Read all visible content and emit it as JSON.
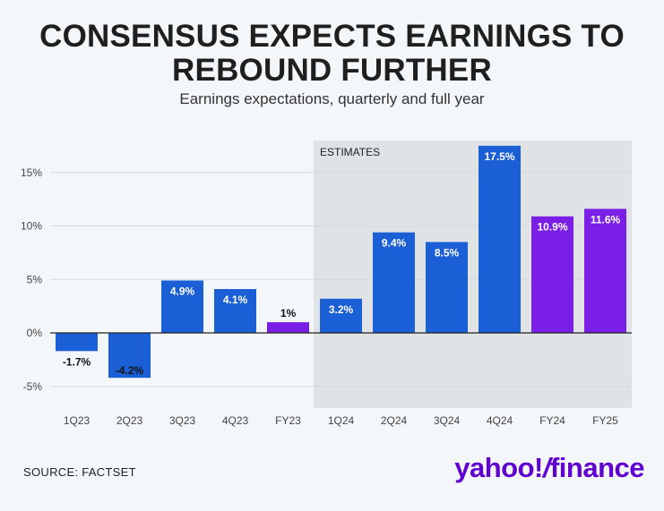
{
  "header": {
    "title_line1": "CONSENSUS EXPECTS EARNINGS TO",
    "title_line2": "REBOUND FURTHER",
    "subtitle": "Earnings expectations, quarterly and full year"
  },
  "footer": {
    "source": "SOURCE: FACTSET",
    "logo_main": "yahoo!",
    "logo_sep": "/",
    "logo_finance": "finance"
  },
  "colors": {
    "quarterly": "#1a5fd6",
    "full_year": "#7b1fe6",
    "estimates_band": "#dfe3e6",
    "gridline": "#d6dade",
    "zero_line": "#222222",
    "bar_label_light": "#ffffff",
    "bar_label_dark": "#111111"
  },
  "chart_data": {
    "type": "bar",
    "title": "CONSENSUS EXPECTS EARNINGS TO REBOUND FURTHER",
    "subtitle": "Earnings expectations, quarterly and full year",
    "categories": [
      "1Q23",
      "2Q23",
      "3Q23",
      "4Q23",
      "FY23",
      "1Q24",
      "2Q24",
      "3Q24",
      "4Q24",
      "FY24",
      "FY25"
    ],
    "values": [
      -1.7,
      -4.2,
      4.9,
      4.1,
      1,
      3.2,
      9.4,
      8.5,
      17.5,
      10.9,
      11.6
    ],
    "labels": [
      "-1.7%",
      "-4.2%",
      "4.9%",
      "4.1%",
      "1%",
      "3.2%",
      "9.4%",
      "8.5%",
      "17.5%",
      "10.9%",
      "11.6%"
    ],
    "kinds": [
      "quarter",
      "quarter",
      "quarter",
      "quarter",
      "year",
      "quarter",
      "quarter",
      "quarter",
      "quarter",
      "year",
      "year"
    ],
    "ylim": [
      -7,
      18
    ],
    "yticks": [
      15,
      10,
      5,
      0,
      -5
    ],
    "ytick_labels": [
      "15%",
      "10%",
      "5%",
      "0%",
      "-5%"
    ],
    "grid": true,
    "estimates_region": {
      "label": "ESTIMATES",
      "from_category": "1Q24",
      "to_category": "FY25"
    },
    "xlabel": "",
    "ylabel": ""
  }
}
